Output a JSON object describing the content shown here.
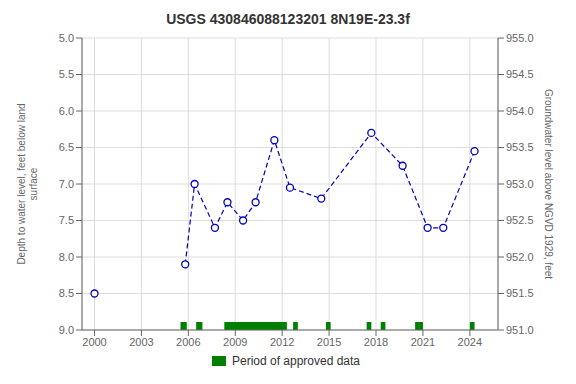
{
  "chart_data": {
    "type": "line",
    "title": "USGS 430846088123201 8N19E-23.3f",
    "y_label": "Depth to water level, feet below land\nsurface",
    "y2_label": "Groundwater level above NGVD 1929, feet",
    "xlim": [
      1999.2,
      2025.8
    ],
    "xticks": [
      2000,
      2003,
      2006,
      2009,
      2012,
      2015,
      2018,
      2021,
      2024
    ],
    "ylim": [
      9.0,
      5.0
    ],
    "yticks": [
      {
        "value": 5.0,
        "label": "5.0"
      },
      {
        "value": 5.5,
        "label": "5.5"
      },
      {
        "value": 6.0,
        "label": "6.0"
      },
      {
        "value": 6.5,
        "label": "6.5"
      },
      {
        "value": 7.0,
        "label": "7.0"
      },
      {
        "value": 7.5,
        "label": "7.5"
      },
      {
        "value": 8.0,
        "label": "8.0"
      },
      {
        "value": 8.5,
        "label": "8.5"
      },
      {
        "value": 9.0,
        "label": "9.0"
      }
    ],
    "y2lim": [
      951.0,
      955.0
    ],
    "y2ticks": [
      {
        "value": 951.0,
        "label": "951.0"
      },
      {
        "value": 951.5,
        "label": "951.5"
      },
      {
        "value": 952.0,
        "label": "952.0"
      },
      {
        "value": 952.5,
        "label": "952.5"
      },
      {
        "value": 953.0,
        "label": "953.0"
      },
      {
        "value": 953.5,
        "label": "953.5"
      },
      {
        "value": 954.0,
        "label": "954.0"
      },
      {
        "value": 954.5,
        "label": "954.5"
      },
      {
        "value": 955.0,
        "label": "955.0"
      }
    ],
    "grid": true,
    "legend": "bottom",
    "series": [
      {
        "type": "scatter",
        "marker": "o",
        "color": "#0000bb",
        "x": [
          2000.0
        ],
        "values": [
          8.5
        ]
      },
      {
        "type": "line",
        "marker": "o",
        "line_style": "dashed",
        "color": "#0000bb",
        "x": [
          2005.8,
          2006.4,
          2007.7,
          2008.5,
          2009.5,
          2010.3,
          2011.5,
          2012.5,
          2014.5,
          2017.7,
          2019.7,
          2021.3,
          2022.3,
          2024.3
        ],
        "values": [
          8.1,
          7.0,
          7.6,
          7.25,
          7.5,
          7.25,
          6.4,
          7.05,
          7.2,
          6.3,
          6.75,
          7.6,
          7.6,
          6.55
        ]
      },
      {
        "type": "span",
        "name": "Period of approved data",
        "color": "#008000",
        "periods": [
          {
            "start": 2005.5,
            "end": 2005.9
          },
          {
            "start": 2006.5,
            "end": 2006.9
          },
          {
            "start": 2008.3,
            "end": 2012.3
          },
          {
            "start": 2012.7,
            "end": 2013.0
          },
          {
            "start": 2014.8,
            "end": 2015.1
          },
          {
            "start": 2017.4,
            "end": 2017.7
          },
          {
            "start": 2018.3,
            "end": 2018.6
          },
          {
            "start": 2020.5,
            "end": 2021.0
          },
          {
            "start": 2024.0,
            "end": 2024.3
          }
        ]
      }
    ]
  }
}
